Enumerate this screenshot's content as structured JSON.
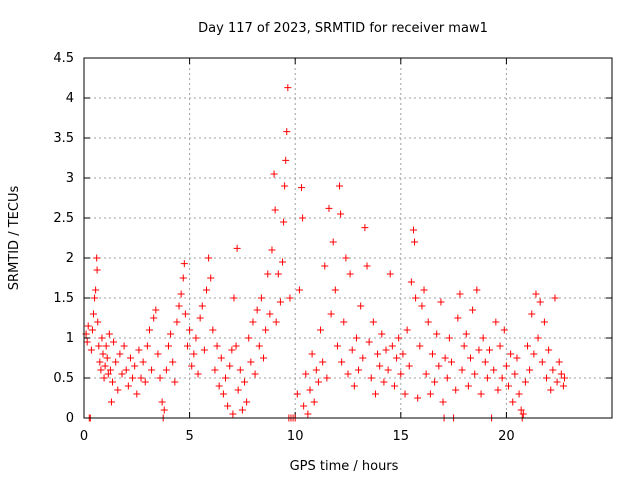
{
  "chart_data": {
    "type": "scatter",
    "title": "Day 117 of 2023, SRMTID for receiver maw1",
    "xlabel": "GPS time / hours",
    "ylabel": "SRMTID / TECUs",
    "xlim": [
      0,
      25
    ],
    "ylim": [
      0,
      4.5
    ],
    "x_ticks": [
      0,
      5,
      10,
      15,
      20
    ],
    "x_tick_labels": [
      "0",
      "5",
      "10",
      "15",
      "20"
    ],
    "y_ticks": [
      0,
      0.5,
      1,
      1.5,
      2,
      2.5,
      3,
      3.5,
      4,
      4.5
    ],
    "y_tick_labels": [
      "0",
      "0.5",
      "1",
      "1.5",
      "2",
      "2.5",
      "3",
      "3.5",
      "4",
      "4.5"
    ],
    "grid": true,
    "marker": "+",
    "series": [
      {
        "name": "SRMTID",
        "color": "#ff0000",
        "points": [
          [
            0.1,
            1.05
          ],
          [
            0.15,
            0.95
          ],
          [
            0.2,
            1.15
          ],
          [
            0.25,
            0.0
          ],
          [
            0.3,
            0.0
          ],
          [
            0.35,
            0.85
          ],
          [
            0.4,
            1.1
          ],
          [
            0.45,
            1.3
          ],
          [
            0.5,
            1.5
          ],
          [
            0.55,
            1.6
          ],
          [
            0.6,
            2.0
          ],
          [
            0.62,
            1.85
          ],
          [
            0.65,
            1.2
          ],
          [
            0.7,
            0.9
          ],
          [
            0.75,
            0.7
          ],
          [
            0.8,
            0.6
          ],
          [
            0.85,
            1.0
          ],
          [
            0.9,
            0.8
          ],
          [
            0.95,
            0.5
          ],
          [
            1.0,
            0.65
          ],
          [
            1.05,
            0.9
          ],
          [
            1.1,
            0.75
          ],
          [
            1.15,
            0.55
          ],
          [
            1.2,
            1.05
          ],
          [
            1.25,
            0.6
          ],
          [
            1.3,
            0.2
          ],
          [
            1.35,
            0.45
          ],
          [
            1.4,
            0.95
          ],
          [
            1.5,
            0.7
          ],
          [
            1.6,
            0.35
          ],
          [
            1.7,
            0.8
          ],
          [
            1.8,
            0.55
          ],
          [
            1.9,
            0.9
          ],
          [
            2.0,
            0.6
          ],
          [
            2.1,
            0.4
          ],
          [
            2.2,
            0.75
          ],
          [
            2.3,
            0.5
          ],
          [
            2.4,
            0.65
          ],
          [
            2.5,
            0.3
          ],
          [
            2.6,
            0.85
          ],
          [
            2.7,
            0.5
          ],
          [
            2.8,
            0.7
          ],
          [
            2.9,
            0.45
          ],
          [
            3.0,
            0.9
          ],
          [
            3.1,
            1.1
          ],
          [
            3.2,
            0.6
          ],
          [
            3.3,
            1.25
          ],
          [
            3.4,
            1.35
          ],
          [
            3.5,
            0.8
          ],
          [
            3.6,
            0.5
          ],
          [
            3.7,
            0.2
          ],
          [
            3.75,
            0.0
          ],
          [
            3.8,
            0.1
          ],
          [
            3.9,
            0.6
          ],
          [
            4.0,
            0.9
          ],
          [
            4.1,
            1.05
          ],
          [
            4.2,
            0.7
          ],
          [
            4.3,
            0.45
          ],
          [
            4.4,
            1.2
          ],
          [
            4.5,
            1.4
          ],
          [
            4.6,
            1.55
          ],
          [
            4.7,
            1.75
          ],
          [
            4.75,
            1.93
          ],
          [
            4.8,
            1.3
          ],
          [
            4.9,
            0.9
          ],
          [
            5.0,
            1.1
          ],
          [
            5.1,
            0.65
          ],
          [
            5.2,
            0.8
          ],
          [
            5.3,
            1.0
          ],
          [
            5.4,
            0.55
          ],
          [
            5.5,
            1.25
          ],
          [
            5.6,
            1.4
          ],
          [
            5.7,
            0.85
          ],
          [
            5.8,
            1.6
          ],
          [
            5.9,
            2.0
          ],
          [
            6.0,
            1.75
          ],
          [
            6.1,
            1.1
          ],
          [
            6.2,
            0.6
          ],
          [
            6.3,
            0.9
          ],
          [
            6.4,
            0.4
          ],
          [
            6.5,
            0.75
          ],
          [
            6.6,
            0.3
          ],
          [
            6.7,
            0.5
          ],
          [
            6.8,
            0.15
          ],
          [
            6.9,
            0.65
          ],
          [
            7.0,
            0.85
          ],
          [
            7.05,
            0.05
          ],
          [
            7.1,
            1.5
          ],
          [
            7.2,
            0.9
          ],
          [
            7.25,
            2.12
          ],
          [
            7.3,
            0.35
          ],
          [
            7.4,
            0.6
          ],
          [
            7.5,
            0.1
          ],
          [
            7.6,
            0.45
          ],
          [
            7.7,
            0.2
          ],
          [
            7.8,
            1.0
          ],
          [
            7.9,
            0.7
          ],
          [
            8.0,
            1.2
          ],
          [
            8.1,
            0.55
          ],
          [
            8.2,
            1.35
          ],
          [
            8.3,
            0.9
          ],
          [
            8.4,
            1.5
          ],
          [
            8.5,
            0.75
          ],
          [
            8.6,
            1.1
          ],
          [
            8.7,
            1.8
          ],
          [
            8.8,
            1.3
          ],
          [
            8.9,
            2.1
          ],
          [
            9.0,
            3.05
          ],
          [
            9.05,
            2.6
          ],
          [
            9.1,
            1.2
          ],
          [
            9.2,
            1.8
          ],
          [
            9.3,
            1.45
          ],
          [
            9.4,
            1.95
          ],
          [
            9.45,
            2.45
          ],
          [
            9.5,
            2.9
          ],
          [
            9.55,
            3.22
          ],
          [
            9.6,
            3.58
          ],
          [
            9.65,
            4.13
          ],
          [
            9.7,
            0.0
          ],
          [
            9.75,
            1.5
          ],
          [
            9.8,
            0.0
          ],
          [
            9.9,
            0.0
          ],
          [
            10.0,
            0.0
          ],
          [
            10.1,
            0.3
          ],
          [
            10.2,
            1.6
          ],
          [
            10.3,
            2.88
          ],
          [
            10.35,
            2.5
          ],
          [
            10.4,
            0.15
          ],
          [
            10.5,
            0.55
          ],
          [
            10.6,
            0.05
          ],
          [
            10.7,
            0.35
          ],
          [
            10.8,
            0.8
          ],
          [
            10.9,
            0.2
          ],
          [
            11.0,
            0.6
          ],
          [
            11.1,
            0.45
          ],
          [
            11.2,
            1.1
          ],
          [
            11.3,
            0.7
          ],
          [
            11.4,
            1.9
          ],
          [
            11.5,
            0.5
          ],
          [
            11.6,
            2.62
          ],
          [
            11.7,
            1.3
          ],
          [
            11.8,
            2.2
          ],
          [
            11.9,
            1.6
          ],
          [
            12.0,
            0.9
          ],
          [
            12.1,
            2.9
          ],
          [
            12.15,
            2.55
          ],
          [
            12.2,
            0.7
          ],
          [
            12.3,
            1.2
          ],
          [
            12.4,
            2.0
          ],
          [
            12.5,
            0.55
          ],
          [
            12.6,
            1.8
          ],
          [
            12.7,
            0.85
          ],
          [
            12.8,
            0.4
          ],
          [
            12.9,
            1.0
          ],
          [
            13.0,
            0.6
          ],
          [
            13.1,
            1.4
          ],
          [
            13.2,
            0.75
          ],
          [
            13.3,
            2.38
          ],
          [
            13.4,
            1.9
          ],
          [
            13.5,
            0.95
          ],
          [
            13.6,
            0.5
          ],
          [
            13.7,
            1.2
          ],
          [
            13.8,
            0.3
          ],
          [
            13.9,
            0.8
          ],
          [
            14.0,
            0.65
          ],
          [
            14.1,
            1.05
          ],
          [
            14.2,
            0.45
          ],
          [
            14.3,
            0.85
          ],
          [
            14.4,
            0.6
          ],
          [
            14.5,
            1.8
          ],
          [
            14.6,
            0.9
          ],
          [
            14.7,
            0.4
          ],
          [
            14.8,
            0.75
          ],
          [
            14.9,
            1.0
          ],
          [
            15.0,
            0.55
          ],
          [
            15.1,
            0.8
          ],
          [
            15.2,
            0.3
          ],
          [
            15.3,
            1.1
          ],
          [
            15.4,
            0.65
          ],
          [
            15.5,
            1.7
          ],
          [
            15.6,
            2.35
          ],
          [
            15.65,
            2.2
          ],
          [
            15.7,
            1.5
          ],
          [
            15.8,
            0.25
          ],
          [
            15.9,
            0.9
          ],
          [
            16.0,
            1.4
          ],
          [
            16.1,
            1.6
          ],
          [
            16.2,
            0.55
          ],
          [
            16.3,
            1.2
          ],
          [
            16.4,
            0.3
          ],
          [
            16.5,
            0.8
          ],
          [
            16.6,
            0.45
          ],
          [
            16.7,
            1.05
          ],
          [
            16.8,
            0.65
          ],
          [
            16.9,
            1.45
          ],
          [
            17.0,
            0.2
          ],
          [
            17.05,
            0.0
          ],
          [
            17.1,
            0.75
          ],
          [
            17.2,
            0.5
          ],
          [
            17.3,
            1.0
          ],
          [
            17.4,
            0.7
          ],
          [
            17.5,
            0.0
          ],
          [
            17.6,
            0.35
          ],
          [
            17.7,
            1.25
          ],
          [
            17.8,
            1.55
          ],
          [
            17.9,
            0.6
          ],
          [
            18.0,
            0.9
          ],
          [
            18.1,
            1.05
          ],
          [
            18.2,
            0.4
          ],
          [
            18.3,
            0.75
          ],
          [
            18.4,
            1.35
          ],
          [
            18.5,
            0.55
          ],
          [
            18.6,
            1.6
          ],
          [
            18.7,
            0.85
          ],
          [
            18.8,
            0.3
          ],
          [
            18.9,
            1.0
          ],
          [
            19.0,
            0.7
          ],
          [
            19.1,
            0.5
          ],
          [
            19.2,
            0.85
          ],
          [
            19.3,
            0.0
          ],
          [
            19.4,
            0.6
          ],
          [
            19.5,
            1.2
          ],
          [
            19.6,
            0.35
          ],
          [
            19.7,
            0.9
          ],
          [
            19.8,
            0.5
          ],
          [
            19.9,
            1.1
          ],
          [
            20.0,
            0.65
          ],
          [
            20.1,
            0.4
          ],
          [
            20.2,
            0.8
          ],
          [
            20.3,
            0.2
          ],
          [
            20.4,
            0.55
          ],
          [
            20.5,
            0.75
          ],
          [
            20.6,
            0.3
          ],
          [
            20.7,
            0.1
          ],
          [
            20.75,
            0.0
          ],
          [
            20.8,
            0.05
          ],
          [
            20.9,
            0.45
          ],
          [
            21.0,
            0.9
          ],
          [
            21.1,
            0.6
          ],
          [
            21.2,
            1.3
          ],
          [
            21.3,
            0.8
          ],
          [
            21.4,
            1.55
          ],
          [
            21.5,
            1.0
          ],
          [
            21.6,
            1.45
          ],
          [
            21.7,
            0.7
          ],
          [
            21.8,
            1.2
          ],
          [
            21.9,
            0.5
          ],
          [
            22.0,
            0.85
          ],
          [
            22.1,
            0.35
          ],
          [
            22.2,
            0.6
          ],
          [
            22.3,
            1.5
          ],
          [
            22.4,
            0.45
          ],
          [
            22.5,
            0.7
          ],
          [
            22.6,
            0.55
          ],
          [
            22.7,
            0.4
          ],
          [
            22.75,
            0.5
          ]
        ]
      }
    ]
  }
}
